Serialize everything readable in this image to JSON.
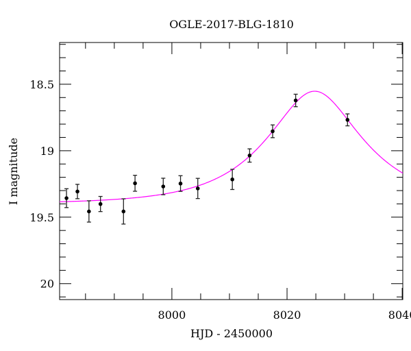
{
  "chart_data": {
    "type": "scatter",
    "title": "OGLE-2017-BLG-1810",
    "xlabel": "HJD - 2450000",
    "ylabel": "I magnitude",
    "xlim": [
      7980.5,
      8040.1
    ],
    "ylim": [
      20.12,
      18.186
    ],
    "y_inverted": true,
    "x_ticks": [
      8000,
      8020,
      8040
    ],
    "x_tick_labels": [
      "8000",
      "8020",
      "8040"
    ],
    "x_minor_step": 5,
    "y_ticks": [
      18.5,
      19,
      19.5,
      20
    ],
    "y_tick_labels": [
      "18.5",
      "19",
      "19.5",
      "20"
    ],
    "y_minor_step": 0.1,
    "grid": false,
    "series": [
      {
        "name": "data",
        "color": "#000000",
        "x": [
          7981.7,
          7983.6,
          7985.6,
          7987.6,
          7991.6,
          7993.6,
          7998.5,
          8001.5,
          8004.5,
          8010.5,
          8013.5,
          8017.5,
          8021.5,
          8030.5
        ],
        "y": [
          19.357,
          19.307,
          19.457,
          19.401,
          19.457,
          19.245,
          19.269,
          19.247,
          19.284,
          19.216,
          19.036,
          18.854,
          18.622,
          18.768
        ],
        "yerr": [
          0.071,
          0.054,
          0.08,
          0.057,
          0.095,
          0.06,
          0.062,
          0.059,
          0.076,
          0.076,
          0.05,
          0.048,
          0.047,
          0.045
        ]
      },
      {
        "name": "model",
        "color": "#ff00ff",
        "model": "paczynski",
        "t0": 8024.8,
        "tE": 14.3,
        "u0": 0.5,
        "baseline_mag": 19.4
      }
    ]
  }
}
